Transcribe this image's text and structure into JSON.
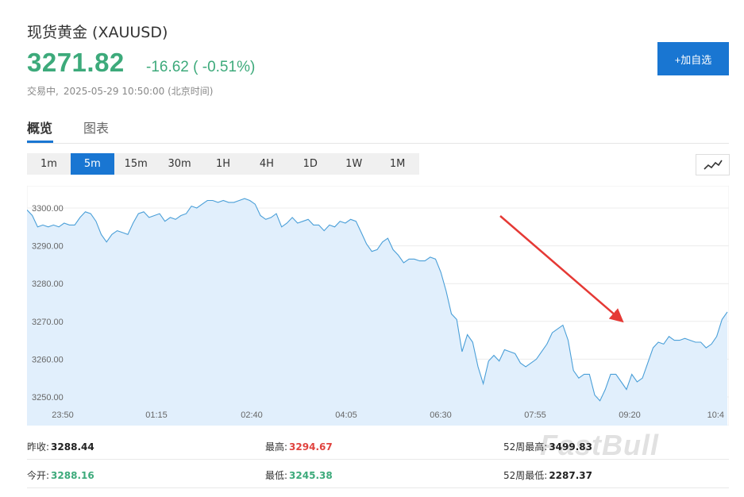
{
  "header": {
    "title": "现货黄金 (XAUUSD)",
    "price": "3271.82",
    "change": "-16.62 ( -0.51%)",
    "status": "交易中,",
    "timestamp": "2025-05-29 10:50:00 (北京时间)",
    "add_button": "+加自选"
  },
  "tabs": [
    {
      "label": "概览",
      "active": true
    },
    {
      "label": "图表",
      "active": false
    }
  ],
  "timeframes": [
    {
      "label": "1m",
      "active": false
    },
    {
      "label": "5m",
      "active": true
    },
    {
      "label": "15m",
      "active": false
    },
    {
      "label": "30m",
      "active": false
    },
    {
      "label": "1H",
      "active": false
    },
    {
      "label": "4H",
      "active": false
    },
    {
      "label": "1D",
      "active": false
    },
    {
      "label": "1W",
      "active": false
    },
    {
      "label": "1M",
      "active": false
    }
  ],
  "chart_toggle_icon": "line-chart-icon",
  "chart_data": {
    "type": "area",
    "y_ticks": [
      "3300.00",
      "3290.00",
      "3280.00",
      "3270.00",
      "3260.00",
      "3250.00"
    ],
    "ylim": [
      3244,
      3306
    ],
    "x_ticks": [
      "23:50",
      "01:15",
      "02:40",
      "04:05",
      "06:30",
      "07:55",
      "09:20",
      "10:4"
    ],
    "series": [
      {
        "values": [
          3299.5,
          3298,
          3295,
          3295.5,
          3295,
          3295.5,
          3295,
          3296,
          3295.5,
          3295.5,
          3297.5,
          3299,
          3298.5,
          3296.5,
          3293,
          3291,
          3293,
          3294,
          3293.5,
          3293,
          3296,
          3298.5,
          3299,
          3297.5,
          3298,
          3298.5,
          3296.5,
          3297.5,
          3297,
          3298,
          3298.5,
          3300.5,
          3300,
          3301,
          3302,
          3302,
          3301.5,
          3302,
          3301.5,
          3301.5,
          3302,
          3302.5,
          3302,
          3301,
          3298,
          3297,
          3297.5,
          3298.5,
          3295,
          3296,
          3297.5,
          3296,
          3296.5,
          3297,
          3295.5,
          3295.5,
          3294,
          3295.5,
          3295,
          3296.5,
          3296,
          3297,
          3296.5,
          3293.5,
          3290.5,
          3288.5,
          3289,
          3291,
          3292,
          3289,
          3287.5,
          3285.5,
          3286.5,
          3286.5,
          3286,
          3286,
          3287,
          3286.5,
          3283,
          3278,
          3272,
          3270.5,
          3262,
          3266.5,
          3264.5,
          3258,
          3253.5,
          3259.5,
          3261,
          3259.5,
          3262.5,
          3262,
          3261.5,
          3259,
          3258,
          3259,
          3260,
          3262,
          3264,
          3267,
          3268,
          3269,
          3265,
          3257,
          3255,
          3256,
          3256,
          3250.5,
          3249,
          3252,
          3256,
          3256,
          3254,
          3252,
          3256,
          3254,
          3255,
          3259,
          3263,
          3264.5,
          3264,
          3266,
          3265,
          3265,
          3265.5,
          3265,
          3264.5,
          3264.5,
          3263,
          3264,
          3266,
          3270.5,
          3272.5
        ]
      }
    ]
  },
  "watermark": "FastBull",
  "stats": [
    {
      "label": "昨收:",
      "value": "3288.44",
      "tone": "dark"
    },
    {
      "label": "最高:",
      "value": "3294.67",
      "tone": "red"
    },
    {
      "label": "52周最高:",
      "value": "3499.83",
      "tone": "dark"
    },
    {
      "label": "今开:",
      "value": "3288.16",
      "tone": "green"
    },
    {
      "label": "最低:",
      "value": "3245.38",
      "tone": "green"
    },
    {
      "label": "52周最低:",
      "value": "2287.37",
      "tone": "dark"
    }
  ]
}
